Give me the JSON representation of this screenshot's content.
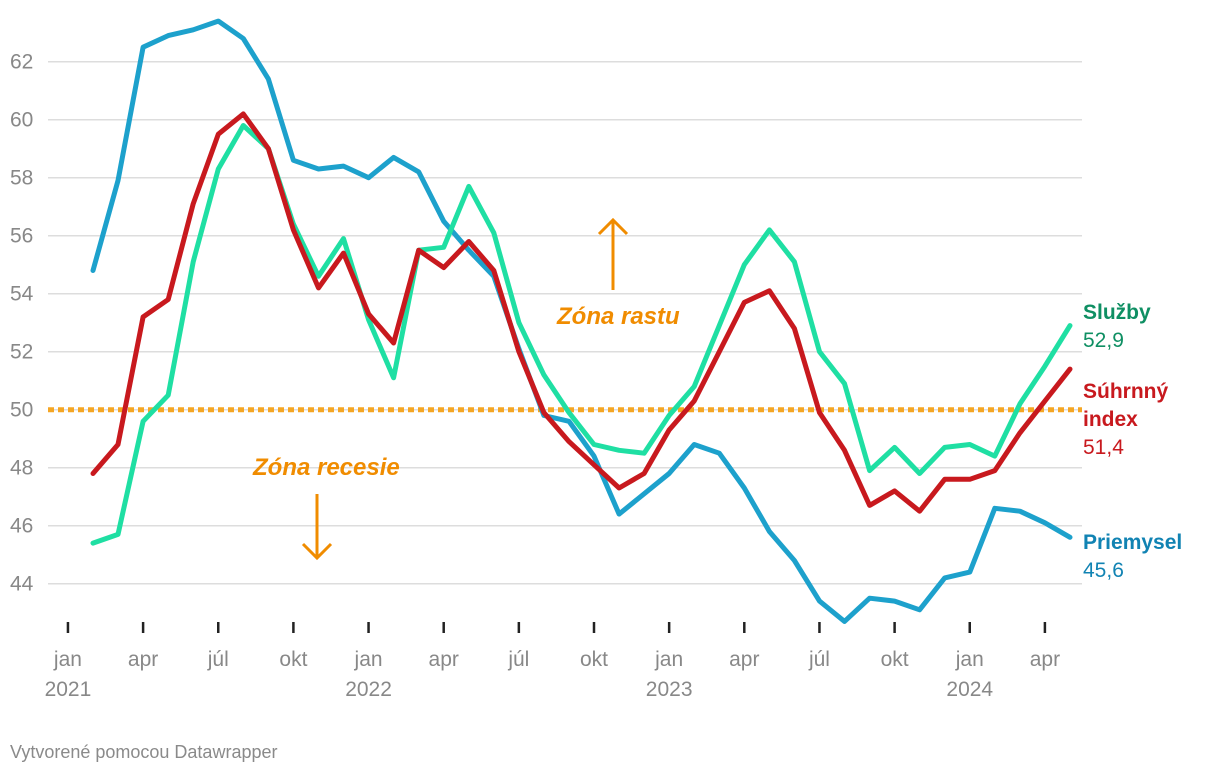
{
  "credit": "Vytvorené pomocou Datawrapper",
  "colors": {
    "sluzby": "#1fdfa3",
    "suhrnny": "#c8191e",
    "priemysel": "#1da1cc",
    "sluzby_label": "#0f8f63",
    "priemysel_label": "#1183b3",
    "threshold": "#f5a623",
    "zone_text": "#f08c00",
    "grid": "#dddddd",
    "tick_text": "#888888"
  },
  "annotations": {
    "growth": "Zóna rastu",
    "recession": "Zóna recesie"
  },
  "chart_data": {
    "type": "line",
    "title": "",
    "xlabel": "",
    "ylabel": "",
    "ylim": [
      43,
      63.5
    ],
    "yticks": [
      44,
      46,
      48,
      50,
      52,
      54,
      56,
      58,
      60,
      62
    ],
    "grid": true,
    "x": [
      "2021-02",
      "2021-03",
      "2021-04",
      "2021-05",
      "2021-06",
      "2021-07",
      "2021-08",
      "2021-09",
      "2021-10",
      "2021-11",
      "2021-12",
      "2022-01",
      "2022-02",
      "2022-03",
      "2022-04",
      "2022-05",
      "2022-06",
      "2022-07",
      "2022-08",
      "2022-09",
      "2022-10",
      "2022-11",
      "2022-12",
      "2023-01",
      "2023-02",
      "2023-03",
      "2023-04",
      "2023-05",
      "2023-06",
      "2023-07",
      "2023-08",
      "2023-09",
      "2023-10",
      "2023-11",
      "2023-12",
      "2024-01",
      "2024-02",
      "2024-03",
      "2024-04",
      "2024-05"
    ],
    "x_ticks": [
      {
        "month": "jan",
        "year": "2021"
      },
      {
        "month": "apr",
        "year": ""
      },
      {
        "month": "júl",
        "year": ""
      },
      {
        "month": "okt",
        "year": ""
      },
      {
        "month": "jan",
        "year": "2022"
      },
      {
        "month": "apr",
        "year": ""
      },
      {
        "month": "júl",
        "year": ""
      },
      {
        "month": "okt",
        "year": ""
      },
      {
        "month": "jan",
        "year": "2023"
      },
      {
        "month": "apr",
        "year": ""
      },
      {
        "month": "júl",
        "year": ""
      },
      {
        "month": "okt",
        "year": ""
      },
      {
        "month": "jan",
        "year": "2024"
      },
      {
        "month": "apr",
        "year": ""
      }
    ],
    "threshold": 50,
    "series": [
      {
        "key": "priemysel",
        "name": "Priemysel",
        "end_label": "45,6",
        "values": [
          54.8,
          57.9,
          62.5,
          62.9,
          63.1,
          63.4,
          62.8,
          61.4,
          58.6,
          58.3,
          58.4,
          58.0,
          58.7,
          58.2,
          56.5,
          55.5,
          54.6,
          52.1,
          49.8,
          49.6,
          48.4,
          46.4,
          47.1,
          47.8,
          48.8,
          48.5,
          47.3,
          45.8,
          44.8,
          43.4,
          42.7,
          43.5,
          43.4,
          43.1,
          44.2,
          44.4,
          46.6,
          46.5,
          46.1,
          45.6
        ]
      },
      {
        "key": "sluzby",
        "name": "Služby",
        "end_label": "52,9",
        "values": [
          45.4,
          45.7,
          49.6,
          50.5,
          55.1,
          58.3,
          59.8,
          59.0,
          56.4,
          54.6,
          55.9,
          53.1,
          51.1,
          55.5,
          55.6,
          57.7,
          56.1,
          53.0,
          51.2,
          49.9,
          48.8,
          48.6,
          48.5,
          49.8,
          50.8,
          52.9,
          55.0,
          56.2,
          55.1,
          52.0,
          50.9,
          47.9,
          48.7,
          47.8,
          48.7,
          48.8,
          48.4,
          50.2,
          51.5,
          52.9
        ]
      },
      {
        "key": "suhrnny",
        "name": "Súhrnný index",
        "name_lines": [
          "Súhrnný",
          "index"
        ],
        "end_label": "51,4",
        "values": [
          47.8,
          48.8,
          53.2,
          53.8,
          57.1,
          59.5,
          60.2,
          59.0,
          56.2,
          54.2,
          55.4,
          53.3,
          52.3,
          55.5,
          54.9,
          55.8,
          54.8,
          52.0,
          49.9,
          48.9,
          48.1,
          47.3,
          47.8,
          49.3,
          50.3,
          52.0,
          53.7,
          54.1,
          52.8,
          49.9,
          48.6,
          46.7,
          47.2,
          46.5,
          47.6,
          47.6,
          47.9,
          49.2,
          50.3,
          51.4
        ]
      }
    ]
  }
}
